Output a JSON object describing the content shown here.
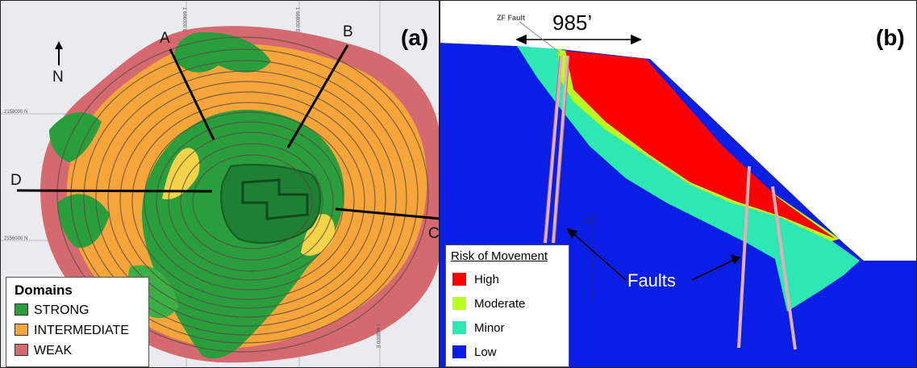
{
  "panel_a": {
    "label": "(a)",
    "north": "N",
    "sections": [
      "A",
      "B",
      "C",
      "D"
    ],
    "grid_labels": [
      "2158000 N",
      "2156000 N",
      "1 666000 E",
      "1 668000 E",
      "1 668000 E"
    ],
    "legend": {
      "title": "Domains",
      "items": [
        {
          "label": "STRONG",
          "color": "#2a9d3c"
        },
        {
          "label": "INTERMEDIATE",
          "color": "#f5a53a"
        },
        {
          "label": "WEAK",
          "color": "#d4696f"
        }
      ]
    }
  },
  "panel_b": {
    "label": "(b)",
    "fault_label": "ZF Fault",
    "width_label": "985’",
    "faults_label": "Faults",
    "zf_marker": "ZF",
    "legend": {
      "title": "Risk of Movement",
      "items": [
        {
          "label": "High",
          "color": "#ff0000"
        },
        {
          "label": "Moderate",
          "color": "#b6ff1e"
        },
        {
          "label": "Minor",
          "color": "#2ee8b4"
        },
        {
          "label": "Low",
          "color": "#0a1ee6"
        }
      ]
    }
  }
}
